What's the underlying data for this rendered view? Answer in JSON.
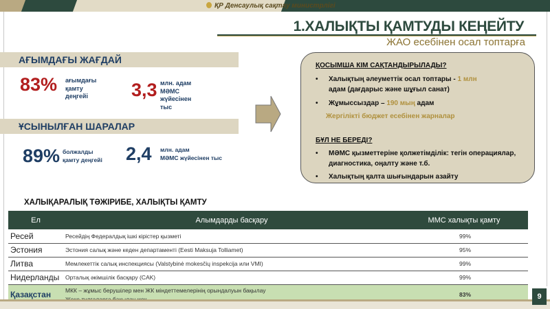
{
  "header": {
    "ministry": "ҚР Денсаулық сақтау министрлігі",
    "title": "1.ХАЛЫҚТЫ ҚАМТУДЫ КЕҢЕЙТУ",
    "subtitle": "ЖАО есебінен осал топтарға"
  },
  "current": {
    "heading": "АҒЫМДАҒЫ ЖАҒДАЙ",
    "stat1_value": "83%",
    "stat1_label": [
      "ағымдағы",
      "қамту",
      "деңгейі"
    ],
    "stat2_value": "3,3",
    "stat2_label": [
      "млн. адам",
      "МӘМС",
      "жүйесінен",
      "тыс"
    ]
  },
  "proposed": {
    "heading": "ҰСЫНЫЛҒАН ШАРАЛАР",
    "stat1_value": "89%",
    "stat1_label": [
      "болжалды",
      "қамту деңгейі"
    ],
    "stat2_value": "2,4",
    "stat2_label": [
      "млн. адам",
      "МӘМС жүйесінен тыс"
    ]
  },
  "box": {
    "q1": "ҚОСЫМША КІМ САҚТАНДЫРЫЛАДЫ?",
    "b1a": "Халықтың әлеуметтік осал топтары - ",
    "b1b": "1 млн",
    "b1c": "адам (дағдарыс және шұғыл санат)",
    "b2a": "Жұмыссыздар – ",
    "b2b": "190 мың",
    "b2c": " адам",
    "note": "Жергілікті бюджет есебінен жарналар",
    "q2": "БҰЛ НЕ БЕРЕДІ?",
    "b3": "МӘМС қызметтеріне қолжетімділік: тегін операциялар, диагностика, оңалту және т.б.",
    "b4": "Халықтың қалта шығындарын азайту"
  },
  "table": {
    "title": "ХАЛЫҚАРАЛЫҚ  ТӘЖІРИБЕ, ХАЛЫҚТЫ ҚАМТУ",
    "headers": [
      "Ел",
      "Алымдарды басқару",
      "ММС халықты қамту"
    ],
    "rows": [
      {
        "country": "Ресей",
        "mgmt": "Ресейдің Федералдық ішкі кірістер қызметі",
        "coverage": "99%"
      },
      {
        "country": "Эстония",
        "mgmt": "Эстония салық және кеден департаменті (Eesti Maksuja Tolliamet)",
        "coverage": "95%"
      },
      {
        "country": "Литва",
        "mgmt": "Мемлекеттік салық инспекциясы (Valstybinė mokesčių inspekcija или VMI)",
        "coverage": "99%"
      },
      {
        "country": "Нидерланды",
        "mgmt": "Орталық әкімшілік басқару (CAK)",
        "coverage": "99%"
      },
      {
        "country": "Қазақстан",
        "mgmt": "МКК – жұмыс берушілер мен ЖК міндеттемелерінің орындалуын бақылау",
        "mgmt2": "Жеке тұлғаларға бақылау жоқ",
        "coverage": "83%"
      }
    ]
  },
  "page_number": "9",
  "colors": {
    "dark_green": "#2d4a3e",
    "beige": "#ddd6c1",
    "red": "#b21e1e",
    "navy": "#1f3e64",
    "gold": "#b0913e",
    "highlight_row": "#c8dfb2"
  }
}
